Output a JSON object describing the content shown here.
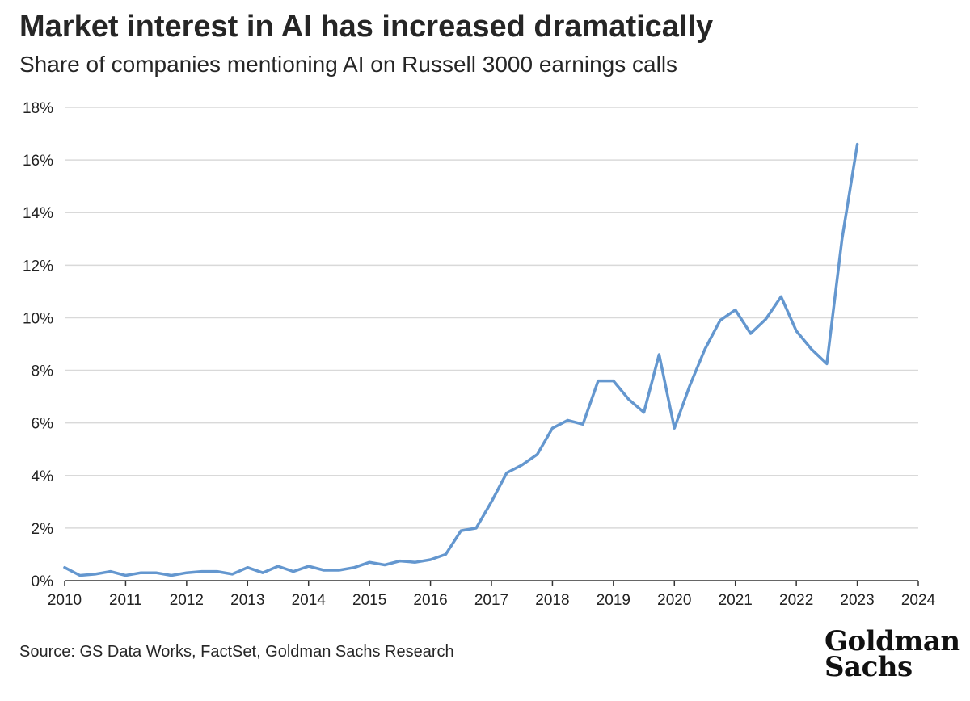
{
  "header": {
    "title": "Market interest in AI has increased dramatically",
    "subtitle": "Share of companies mentioning AI on Russell 3000 earnings calls"
  },
  "footer": {
    "source": "Source: GS Data Works, FactSet, Goldman Sachs Research",
    "logo_line1": "Goldman",
    "logo_line2": "Sachs"
  },
  "colors": {
    "line": "#6497cf",
    "grid": "#d9d9d9",
    "axis": "#333333"
  },
  "chart_data": {
    "type": "line",
    "title": "Market interest in AI has increased dramatically",
    "subtitle": "Share of companies mentioning AI on Russell 3000 earnings calls",
    "xlabel": "",
    "ylabel": "",
    "xlim": [
      2010,
      2024
    ],
    "ylim": [
      0,
      18
    ],
    "grid": true,
    "y_ticks": [
      0,
      2,
      4,
      6,
      8,
      10,
      12,
      14,
      16,
      18
    ],
    "y_tick_labels": [
      "0%",
      "2%",
      "4%",
      "6%",
      "8%",
      "10%",
      "12%",
      "14%",
      "16%",
      "18%"
    ],
    "x_ticks": [
      2010,
      2011,
      2012,
      2013,
      2014,
      2015,
      2016,
      2017,
      2018,
      2019,
      2020,
      2021,
      2022,
      2023,
      2024
    ],
    "x_tick_labels": [
      "2010",
      "2011",
      "2012",
      "2013",
      "2014",
      "2015",
      "2016",
      "2017",
      "2018",
      "2019",
      "2020",
      "2021",
      "2022",
      "2023",
      "2024"
    ],
    "series": [
      {
        "name": "Share of companies mentioning AI",
        "x": [
          2010.0,
          2010.25,
          2010.5,
          2010.75,
          2011.0,
          2011.25,
          2011.5,
          2011.75,
          2012.0,
          2012.25,
          2012.5,
          2012.75,
          2013.0,
          2013.25,
          2013.5,
          2013.75,
          2014.0,
          2014.25,
          2014.5,
          2014.75,
          2015.0,
          2015.25,
          2015.5,
          2015.75,
          2016.0,
          2016.25,
          2016.5,
          2016.75,
          2017.0,
          2017.25,
          2017.5,
          2017.75,
          2018.0,
          2018.25,
          2018.5,
          2018.75,
          2019.0,
          2019.25,
          2019.5,
          2019.75,
          2020.0,
          2020.25,
          2020.5,
          2020.75,
          2021.0,
          2021.25,
          2021.5,
          2021.75,
          2022.0,
          2022.25,
          2022.5,
          2022.75,
          2023.0
        ],
        "values": [
          0.5,
          0.2,
          0.25,
          0.35,
          0.2,
          0.3,
          0.3,
          0.2,
          0.3,
          0.35,
          0.35,
          0.25,
          0.5,
          0.3,
          0.55,
          0.35,
          0.55,
          0.4,
          0.4,
          0.5,
          0.7,
          0.6,
          0.75,
          0.7,
          0.8,
          1.0,
          1.9,
          2.0,
          3.0,
          4.1,
          4.4,
          4.8,
          5.8,
          6.1,
          5.95,
          7.6,
          7.6,
          6.9,
          6.4,
          8.6,
          5.8,
          7.4,
          8.8,
          9.9,
          10.3,
          9.4,
          9.95,
          10.8,
          9.5,
          8.8,
          8.25,
          13.0,
          16.6
        ]
      }
    ]
  }
}
